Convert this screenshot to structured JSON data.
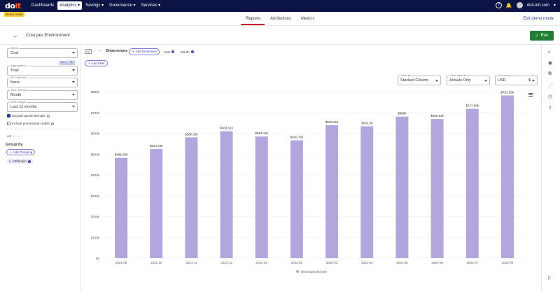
{
  "topbar": {
    "logo_main": "do",
    "logo_accent": "it",
    "nav": [
      "Dashboards",
      "Analytics",
      "Savings",
      "Governance",
      "Services"
    ],
    "nav_active": "Analytics",
    "account": "doit-intl.com",
    "demo_badge": "Demo mode"
  },
  "subtabs": [
    "Reports",
    "Attributions",
    "Metrics"
  ],
  "exit_demo": "Exit demo mode",
  "report": {
    "title": "Cost per Environment",
    "run_label": "Run"
  },
  "sidebar": {
    "metric_label": "Metric",
    "metric_value": "Cost",
    "metric_filter": "Metric filter",
    "aggregation_label": "Aggregation",
    "aggregation_value": "Total",
    "ml_label": "ML Features",
    "ml_value": "None",
    "interval_label": "Time interval",
    "interval_value": "Month",
    "range_label": "Time Range",
    "range_value": "Last 12 months",
    "exclude_partial": "Exclude partial intervals",
    "include_promo": "Include promotional credits",
    "group_by": "Group by",
    "add_grouping": "Add Grouping",
    "grouping_chip": "Attribution"
  },
  "dimensions": {
    "label": "Dimensions",
    "add": "Add Dimension",
    "chips": [
      "Year",
      "Month"
    ],
    "add_filter": "Add Filter"
  },
  "controls": {
    "view_by_label": "View by",
    "view_by_value": "Stacked Column",
    "view_data_label": "View data as",
    "view_data_value": "Actuals Only",
    "currency_label": "Currency",
    "currency_value": "USD",
    "currency_symbol": "$"
  },
  "chart_data": {
    "type": "bar",
    "categories": [
      "2021-09",
      "2021-10",
      "2021-11",
      "2021-12",
      "2022-01",
      "2022-02",
      "2022-03",
      "2022-04",
      "2022-05",
      "2022-06",
      "2022-07",
      "2022-08"
    ],
    "series": [
      {
        "name": "Development ENV",
        "values": [
          481540,
          524160,
          580320,
          609610,
          584160,
          565790,
          639310,
          633500,
          680000,
          668540,
          717690,
          781650
        ],
        "labels": [
          "$481.54k",
          "$524.16k",
          "$580.32k",
          "$609.61k",
          "$584.16k",
          "$565.79k",
          "$639.31k",
          "$633.5k",
          "$680k",
          "$668.54k",
          "$717.69k",
          "$781.65k"
        ],
        "color": "#b3a6dc"
      }
    ],
    "ylim": [
      0,
      800000
    ],
    "yticks": [
      0,
      100000,
      200000,
      300000,
      400000,
      500000,
      600000,
      700000,
      800000
    ],
    "ytick_labels": [
      "$0",
      "$100k",
      "$200k",
      "$300k",
      "$400k",
      "$500k",
      "$600k",
      "$700k",
      "$800k"
    ],
    "grid": true,
    "legend": "bottom"
  }
}
